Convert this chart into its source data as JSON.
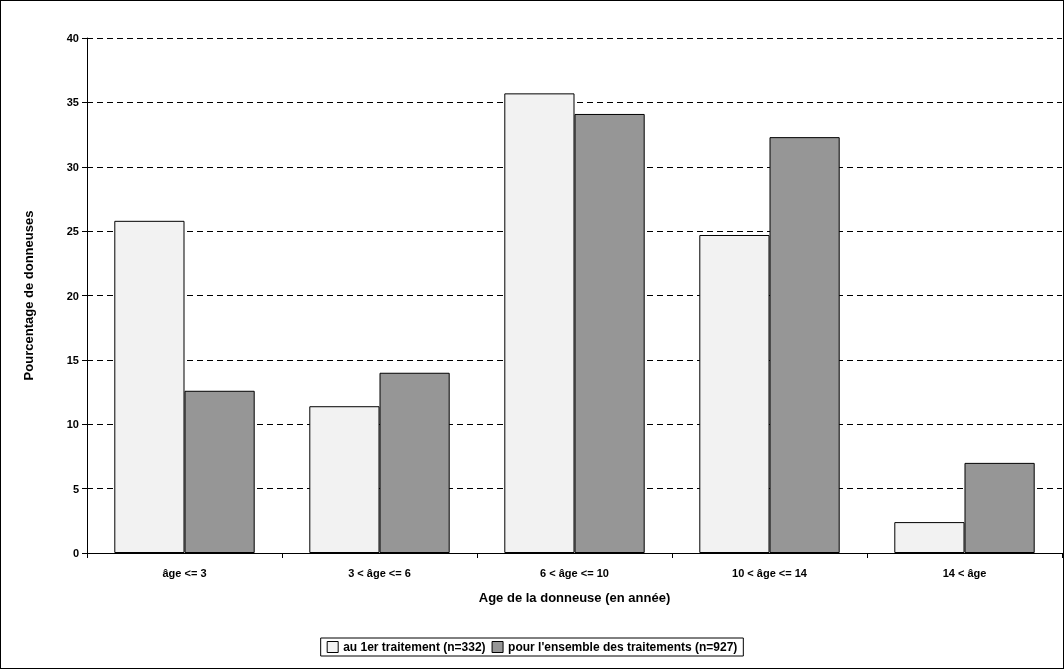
{
  "chart_data": {
    "type": "bar",
    "xlabel": "Age de la donneuse (en année)",
    "ylabel": "Pourcentage de donneuses",
    "categories": [
      "âge <= 3",
      "3 < âge <= 6",
      "6 < âge <= 10",
      "10 < âge <= 14",
      "14 < âge"
    ],
    "series": [
      {
        "name": "au 1er traitement (n=332)",
        "color": "#f2f2f2",
        "values": [
          25.8,
          11.4,
          35.7,
          24.7,
          2.4
        ]
      },
      {
        "name": "pour l'ensemble des traitements (n=927)",
        "color": "#969696",
        "values": [
          12.6,
          14.0,
          34.1,
          32.3,
          7.0
        ]
      }
    ],
    "ylim": [
      0,
      40
    ],
    "yticks": [
      0,
      5,
      10,
      15,
      20,
      25,
      30,
      35,
      40
    ],
    "grid": "y",
    "legend": "bottom"
  }
}
